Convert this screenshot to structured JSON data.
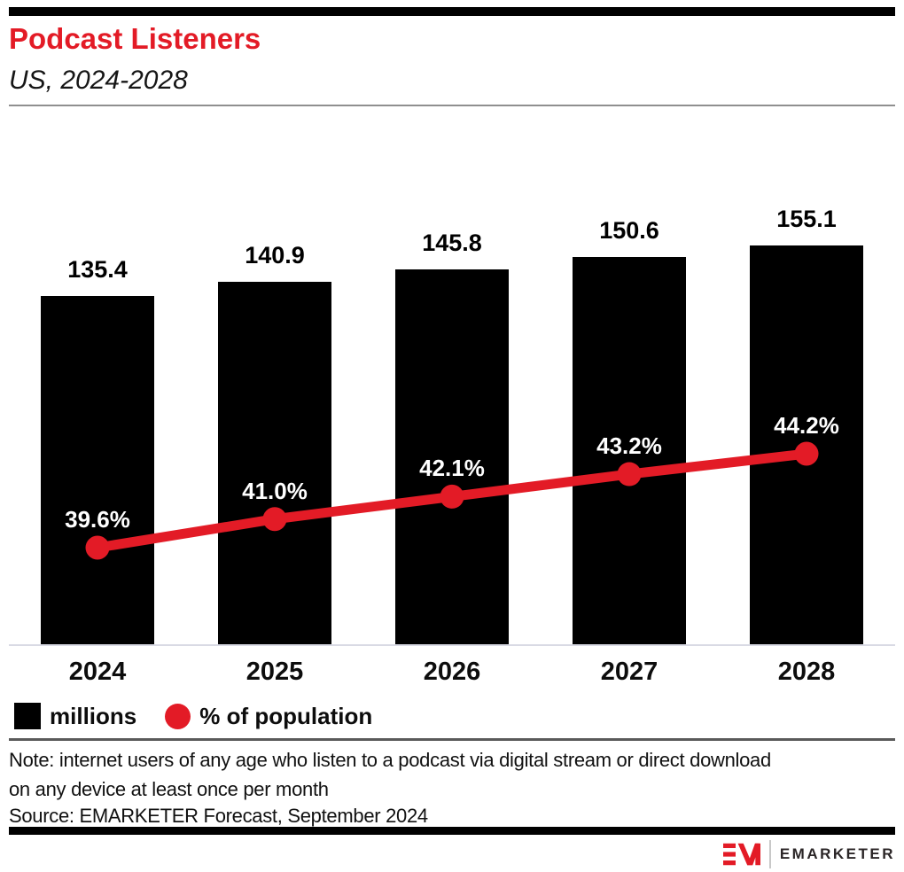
{
  "header": {
    "title": "Podcast Listeners",
    "subtitle": "US, 2024-2028"
  },
  "chart_data": {
    "type": "bar",
    "subtype": "bar-line-combo",
    "categories": [
      "2024",
      "2025",
      "2026",
      "2027",
      "2028"
    ],
    "series": [
      {
        "name": "millions",
        "type": "bar",
        "color": "#000000",
        "values": [
          135.4,
          140.9,
          145.8,
          150.6,
          155.1
        ],
        "label_format": "number"
      },
      {
        "name": "% of population",
        "type": "line",
        "color": "#E31B26",
        "values": [
          39.6,
          41.0,
          42.1,
          43.2,
          44.2
        ],
        "label_format": "percent"
      }
    ],
    "title": "Podcast Listeners",
    "subtitle": "US, 2024-2028",
    "xlabel": "",
    "ylabel": "",
    "value_labels_shown": true,
    "gridlines": false,
    "y_axis_shown": false,
    "legend_position": "bottom-left"
  },
  "legend": {
    "items": [
      {
        "label": "millions",
        "swatch": "black-square"
      },
      {
        "label": "% of population",
        "swatch": "red-circle"
      }
    ]
  },
  "note": "Note: internet users of any age who listen to a podcast via digital stream or direct download on any device at least once per month",
  "source": "Source: EMARKETER Forecast, September 2024",
  "footer": {
    "logo": "EM-monogram",
    "brand_name": "EMARKETER"
  },
  "colors": {
    "accent_red": "#E31B26",
    "bar_black": "#000000",
    "axis_line": "#D9DAE4",
    "header_rule": "#8F8F8F",
    "note_rule": "#5A5A5A",
    "footer_text": "#2B2627"
  }
}
